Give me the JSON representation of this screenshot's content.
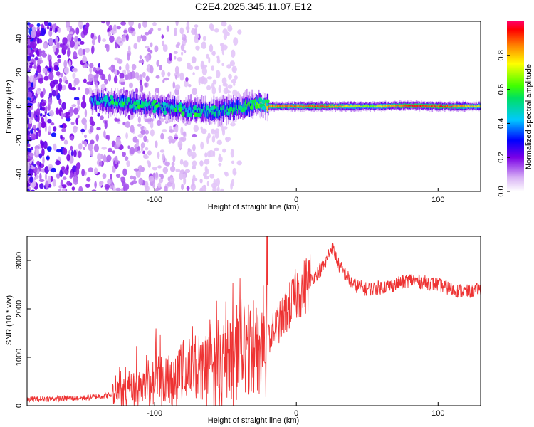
{
  "figure_title": "C2E4.2025.345.11.07.E12",
  "chart_data": [
    {
      "type": "heatmap",
      "title": "C2E4.2025.345.11.07.E12",
      "xlabel": "Height of straight line (km)",
      "ylabel": "Frequency (Hz)",
      "xlim": [
        -190,
        130
      ],
      "ylim": [
        -50,
        50
      ],
      "x_ticks": [
        -100,
        0,
        100
      ],
      "y_ticks": [
        -40,
        -20,
        0,
        20,
        40
      ],
      "colorbar": {
        "label": "Normalized spectral amplitude",
        "range": [
          0,
          1
        ],
        "ticks": [
          0.0,
          0.2,
          0.4,
          0.6,
          0.8
        ],
        "tick_labels": [
          "0.0",
          "0.2",
          "0.4",
          "0.6",
          "0.8"
        ]
      },
      "ridge": {
        "description_points_x": [
          -140,
          -120,
          -100,
          -80,
          -60,
          -40,
          -30,
          -20,
          0,
          20,
          50,
          80,
          100,
          130
        ],
        "frequency": [
          3,
          2,
          0,
          -2,
          -3,
          -1,
          2,
          0,
          0,
          0,
          0,
          0.5,
          0,
          0
        ],
        "peak_amplitude": [
          0.45,
          0.5,
          0.5,
          0.45,
          0.5,
          0.55,
          0.6,
          0.85,
          0.85,
          0.9,
          0.65,
          0.95,
          0.9,
          0.75
        ]
      },
      "noise_region_x": [
        -190,
        -80
      ]
    },
    {
      "type": "line",
      "xlabel": "Height of straight line (km)",
      "ylabel": "SNR (10 * v/v)",
      "xlim": [
        -190,
        130
      ],
      "ylim": [
        0,
        3500
      ],
      "x_ticks": [
        -100,
        0,
        100
      ],
      "y_ticks": [
        0,
        1000,
        2000,
        3000
      ],
      "series": [
        {
          "name": "SNR",
          "color": "#ee3333",
          "trend_x": [
            -190,
            -150,
            -130,
            -120,
            -100,
            -80,
            -60,
            -40,
            -20,
            -10,
            0,
            10,
            20,
            25,
            30,
            40,
            50,
            60,
            70,
            80,
            90,
            100,
            110,
            120,
            130
          ],
          "trend_y": [
            130,
            160,
            220,
            350,
            500,
            700,
            850,
            1000,
            1400,
            1800,
            2300,
            2600,
            2900,
            3300,
            2900,
            2500,
            2400,
            2450,
            2500,
            2600,
            2550,
            2500,
            2400,
            2350,
            2400
          ]
        }
      ]
    }
  ]
}
